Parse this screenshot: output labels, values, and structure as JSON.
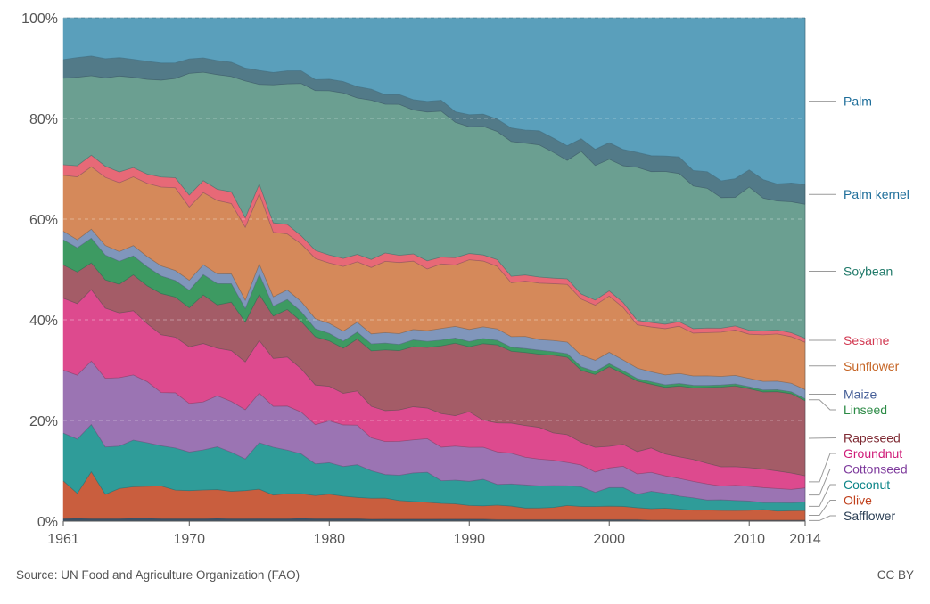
{
  "source_text": "Source: UN Food and Agriculture Organization (FAO)",
  "license_text": "CC BY",
  "chart_data": {
    "type": "area",
    "stacked": true,
    "x_ticks": [
      "1961",
      "1970",
      "1980",
      "1990",
      "2000",
      "2010",
      "2014"
    ],
    "y_ticks": [
      "0%",
      "20%",
      "40%",
      "60%",
      "80%",
      "100%"
    ],
    "ylim": [
      0,
      100
    ],
    "xlim": [
      1961,
      2014
    ],
    "grid": "horizontal dashed",
    "legend": "right",
    "x": [
      1961,
      1962,
      1963,
      1964,
      1965,
      1966,
      1967,
      1968,
      1969,
      1970,
      1971,
      1972,
      1973,
      1974,
      1975,
      1976,
      1977,
      1978,
      1979,
      1980,
      1981,
      1982,
      1983,
      1984,
      1985,
      1986,
      1987,
      1988,
      1989,
      1990,
      1991,
      1992,
      1993,
      1994,
      1995,
      1996,
      1997,
      1998,
      1999,
      2000,
      2001,
      2002,
      2003,
      2004,
      2005,
      2006,
      2007,
      2008,
      2009,
      2010,
      2011,
      2012,
      2013,
      2014
    ],
    "series": [
      {
        "name": "Safflower",
        "color": "#3b5166",
        "values": [
          0.5,
          0.6,
          0.5,
          0.5,
          0.5,
          0.6,
          0.6,
          0.5,
          0.5,
          0.5,
          0.5,
          0.6,
          0.5,
          0.5,
          0.5,
          0.5,
          0.5,
          0.6,
          0.5,
          0.5,
          0.5,
          0.5,
          0.4,
          0.4,
          0.4,
          0.4,
          0.4,
          0.4,
          0.4,
          0.4,
          0.4,
          0.3,
          0.3,
          0.3,
          0.3,
          0.3,
          0.3,
          0.3,
          0.3,
          0.3,
          0.3,
          0.3,
          0.2,
          0.2,
          0.2,
          0.2,
          0.2,
          0.2,
          0.2,
          0.2,
          0.2,
          0.2,
          0.2,
          0.2
        ]
      },
      {
        "name": "Olive",
        "color": "#c95e3e",
        "values": [
          7.5,
          4.9,
          9.3,
          4.8,
          5.9,
          6.1,
          6.2,
          6.5,
          5.7,
          5.6,
          5.8,
          5.9,
          5.6,
          5.7,
          5.7,
          4.8,
          5.0,
          4.8,
          4.6,
          4.9,
          4.5,
          4.3,
          4.2,
          4.0,
          3.6,
          3.4,
          3.3,
          3.0,
          2.9,
          2.6,
          2.6,
          2.8,
          2.7,
          2.3,
          2.3,
          2.4,
          2.8,
          2.6,
          2.6,
          2.6,
          2.6,
          2.4,
          2.3,
          2.4,
          2.2,
          2.0,
          2.0,
          1.9,
          1.9,
          2.0,
          2.1,
          1.8,
          1.9,
          1.9
        ]
      },
      {
        "name": "Coconut",
        "color": "#2f9c99",
        "values": [
          9.5,
          10.8,
          9.4,
          9.4,
          8.3,
          9.1,
          8.5,
          8.0,
          8.4,
          7.7,
          8.1,
          8.8,
          8.0,
          6.4,
          9.0,
          9.7,
          8.7,
          7.8,
          6.3,
          6.3,
          5.9,
          6.6,
          5.5,
          4.5,
          4.9,
          5.5,
          5.9,
          4.3,
          4.5,
          4.6,
          5.2,
          4.0,
          4.4,
          4.6,
          4.4,
          4.3,
          3.9,
          3.9,
          2.8,
          3.6,
          3.7,
          2.7,
          3.5,
          3.0,
          2.6,
          2.5,
          2.0,
          2.1,
          2.0,
          1.9,
          1.4,
          1.7,
          1.6,
          1.7
        ]
      },
      {
        "name": "Cottonseed",
        "color": "#9b74b3",
        "values": [
          12.5,
          12.7,
          12.6,
          13.6,
          13.4,
          12.7,
          11.9,
          10.6,
          11.0,
          9.7,
          9.7,
          10.5,
          10.4,
          10.0,
          9.6,
          8.3,
          8.8,
          8.2,
          7.8,
          8.4,
          8.3,
          8.0,
          6.6,
          6.3,
          6.6,
          6.4,
          6.6,
          6.4,
          6.5,
          6.5,
          6.3,
          6.3,
          6.1,
          5.5,
          5.3,
          5.0,
          4.6,
          4.3,
          4.0,
          3.8,
          4.2,
          4.1,
          3.8,
          3.5,
          3.5,
          3.3,
          3.2,
          2.7,
          3.0,
          3.0,
          3.0,
          2.8,
          2.7,
          2.8
        ]
      },
      {
        "name": "Groundnut",
        "color": "#dd4a8e",
        "values": [
          14.3,
          14.2,
          14.2,
          13.9,
          12.7,
          12.5,
          11.3,
          11.5,
          11.1,
          11.3,
          11.8,
          9.8,
          10.4,
          9.7,
          10.2,
          9.7,
          9.8,
          8.5,
          7.9,
          6.9,
          6.3,
          6.9,
          6.3,
          5.9,
          6.1,
          6.4,
          6.0,
          6.4,
          5.8,
          6.8,
          5.3,
          5.6,
          6.0,
          6.3,
          6.3,
          5.4,
          5.5,
          4.5,
          4.9,
          4.2,
          4.3,
          4.5,
          4.9,
          4.4,
          4.3,
          4.4,
          4.1,
          3.8,
          3.7,
          3.8,
          3.7,
          3.5,
          3.3,
          2.4
        ]
      },
      {
        "name": "Rapeseed",
        "color": "#a45c67",
        "values": [
          6.6,
          6.3,
          5.3,
          5.6,
          5.6,
          7.0,
          7.4,
          8.2,
          8.0,
          7.8,
          9.8,
          8.9,
          9.9,
          8.1,
          8.9,
          8.6,
          9.5,
          9.3,
          9.6,
          9.1,
          9.0,
          10.5,
          11.1,
          11.6,
          11.5,
          11.6,
          11.9,
          12.9,
          13.8,
          12.4,
          15.0,
          15.1,
          14.3,
          14.5,
          14.5,
          15.3,
          15.3,
          14.2,
          14.4,
          15.4,
          13.9,
          14.2,
          12.8,
          13.4,
          14.1,
          14.4,
          15.1,
          15.7,
          16.0,
          16.1,
          15.4,
          15.8,
          16.0,
          14.9
        ]
      },
      {
        "name": "Linseed",
        "color": "#3d9a62",
        "values": [
          5.0,
          4.8,
          4.9,
          4.9,
          4.5,
          3.7,
          3.7,
          3.5,
          3.3,
          3.5,
          4.1,
          4.4,
          3.8,
          2.7,
          3.9,
          2.0,
          2.0,
          1.9,
          1.6,
          1.5,
          1.4,
          1.4,
          1.4,
          1.3,
          1.2,
          1.3,
          1.2,
          1.1,
          1.0,
          1.0,
          1.0,
          0.9,
          0.8,
          0.8,
          0.8,
          0.7,
          0.7,
          0.7,
          0.6,
          0.6,
          0.6,
          0.5,
          0.5,
          0.5,
          0.5,
          0.5,
          0.4,
          0.4,
          0.4,
          0.4,
          0.4,
          0.4,
          0.4,
          0.4
        ]
      },
      {
        "name": "Maize",
        "color": "#8096bb",
        "values": [
          1.7,
          1.6,
          1.8,
          1.9,
          1.9,
          2.0,
          2.0,
          2.0,
          2.0,
          2.0,
          2.0,
          2.0,
          2.0,
          1.7,
          2.0,
          1.9,
          1.9,
          2.0,
          2.0,
          2.0,
          2.0,
          2.0,
          2.0,
          2.0,
          2.1,
          2.0,
          2.1,
          2.2,
          2.2,
          2.3,
          2.3,
          2.2,
          2.1,
          2.4,
          2.1,
          2.2,
          2.3,
          2.3,
          2.2,
          2.2,
          2.1,
          2.1,
          2.0,
          2.0,
          2.0,
          1.9,
          1.9,
          1.7,
          1.7,
          1.7,
          1.7,
          1.7,
          1.7,
          1.8
        ]
      },
      {
        "name": "Sunflower",
        "color": "#d5895a",
        "values": [
          11.1,
          12.5,
          12.4,
          13.5,
          13.5,
          13.4,
          14.3,
          15.7,
          16.5,
          14.6,
          14.6,
          15.1,
          14.4,
          14.8,
          13.6,
          13.1,
          11.2,
          11.3,
          12.0,
          12.1,
          12.9,
          12.2,
          13.3,
          13.6,
          13.8,
          13.2,
          12.1,
          12.3,
          11.7,
          13.3,
          12.9,
          12.1,
          10.7,
          11.0,
          11.2,
          11.2,
          11.4,
          11.1,
          10.9,
          10.9,
          10.3,
          8.7,
          9.0,
          9.3,
          9.4,
          8.6,
          8.6,
          8.7,
          9.0,
          9.0,
          9.3,
          9.4,
          9.4,
          9.4
        ]
      },
      {
        "name": "Sesame",
        "color": "#e76977",
        "values": [
          2.1,
          2.2,
          2.3,
          2.2,
          2.1,
          1.8,
          1.8,
          2.0,
          2.0,
          2.4,
          2.4,
          2.3,
          2.4,
          1.9,
          1.9,
          1.9,
          1.9,
          1.6,
          1.6,
          1.6,
          1.6,
          1.5,
          1.6,
          1.6,
          1.4,
          1.4,
          1.6,
          1.3,
          1.4,
          1.2,
          1.2,
          1.3,
          1.3,
          1.2,
          1.2,
          1.1,
          1.1,
          1.0,
          1.0,
          1.0,
          1.0,
          0.9,
          0.9,
          0.9,
          0.9,
          0.9,
          0.9,
          0.8,
          0.8,
          0.8,
          0.8,
          0.8,
          0.8,
          0.8
        ]
      },
      {
        "name": "Soybean",
        "color": "#6b9f91",
        "values": [
          17.2,
          17.6,
          15.8,
          17.5,
          18.8,
          17.6,
          18.5,
          19.3,
          19.8,
          24.3,
          21.9,
          23.6,
          23.6,
          27.8,
          19.3,
          28.0,
          28.1,
          29.9,
          31.8,
          32.9,
          33.0,
          31.6,
          31.9,
          28.4,
          29.3,
          27.8,
          29.2,
          27.8,
          25.8,
          24.2,
          25.2,
          24.8,
          26.8,
          26.2,
          26.2,
          24.8,
          23.4,
          28.2,
          26.6,
          25.5,
          26.9,
          30.8,
          30.3,
          30.7,
          29.5,
          28.7,
          27.8,
          25.7,
          25.5,
          29.2,
          26.5,
          25.7,
          26.4,
          26.6
        ]
      },
      {
        "name": "Palm kernel",
        "color": "#527a88",
        "values": [
          3.7,
          3.9,
          3.9,
          3.8,
          3.6,
          3.5,
          3.5,
          3.4,
          3.1,
          2.9,
          2.9,
          2.9,
          2.9,
          2.6,
          2.7,
          2.5,
          2.6,
          2.5,
          2.2,
          2.3,
          2.3,
          2.3,
          2.2,
          1.8,
          1.9,
          2.0,
          2.1,
          2.1,
          2.0,
          2.3,
          2.4,
          2.4,
          2.7,
          2.6,
          2.8,
          2.8,
          2.9,
          2.5,
          3.2,
          3.2,
          3.2,
          3.0,
          3.2,
          3.1,
          3.3,
          3.1,
          3.3,
          3.3,
          3.7,
          3.5,
          3.7,
          3.4,
          3.8,
          3.9
        ]
      },
      {
        "name": "Palm",
        "color": "#5a9fbb",
        "values": [
          8.3,
          7.9,
          7.6,
          8.1,
          7.8,
          8.1,
          8.5,
          9.0,
          9.0,
          8.2,
          8.1,
          8.8,
          9.1,
          10.2,
          10.2,
          11.1,
          10.6,
          10.4,
          12.3,
          12.3,
          12.7,
          13.9,
          14.3,
          14.7,
          14.9,
          15.8,
          16.4,
          15.7,
          17.9,
          18.5,
          18.9,
          19.6,
          21.9,
          22.3,
          22.4,
          23.7,
          25.3,
          23.9,
          26.0,
          24.2,
          25.9,
          27.1,
          27.7,
          27.8,
          27.7,
          30.7,
          30.6,
          32.1,
          31.9,
          31.0,
          32.3,
          33.1,
          33.3,
          33.1
        ]
      }
    ],
    "legend_labels": [
      {
        "series": "Palm",
        "text": "Palm",
        "color": "#1e6e9a"
      },
      {
        "series": "Palm kernel",
        "text": "Palm kernel",
        "color": "#1e6e9a"
      },
      {
        "series": "Soybean",
        "text": "Soybean",
        "color": "#217a6a"
      },
      {
        "series": "Sesame",
        "text": "Sesame",
        "color": "#d23a52"
      },
      {
        "series": "Sunflower",
        "text": "Sunflower",
        "color": "#c56424"
      },
      {
        "series": "Maize",
        "text": "Maize",
        "color": "#465f98"
      },
      {
        "series": "Linseed",
        "text": "Linseed",
        "color": "#2b8a45"
      },
      {
        "series": "Rapeseed",
        "text": "Rapeseed",
        "color": "#7e2a33"
      },
      {
        "series": "Groundnut",
        "text": "Groundnut",
        "color": "#cf1b78"
      },
      {
        "series": "Cottonseed",
        "text": "Cottonseed",
        "color": "#7e3b9d"
      },
      {
        "series": "Coconut",
        "text": "Coconut",
        "color": "#0d8588"
      },
      {
        "series": "Olive",
        "text": "Olive",
        "color": "#c0401c"
      },
      {
        "series": "Safflower",
        "text": "Safflower",
        "color": "#2b3f55"
      }
    ]
  }
}
